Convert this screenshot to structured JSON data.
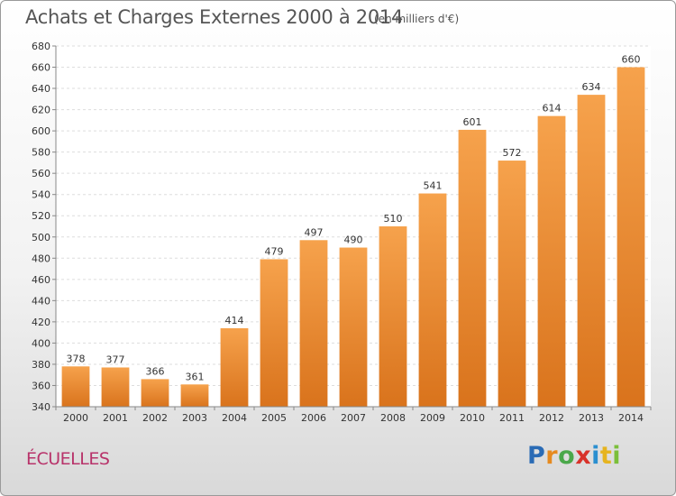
{
  "title": "Achats et Charges Externes 2000 à 2014",
  "subtitle": "(en milliers d'€)",
  "place": "ÉCUELLES",
  "logo": {
    "letters": [
      "P",
      "r",
      "o",
      "x",
      "i",
      "t",
      "i"
    ],
    "colors": [
      "#2a6bb5",
      "#e68a1f",
      "#4aa84a",
      "#d8322a",
      "#2a8fd0",
      "#e6b41f",
      "#7bbf3a"
    ]
  },
  "colors": {
    "bar_top": "#f6a24c",
    "bar_bottom": "#d9731c",
    "title": "#555555",
    "place": "#b8336a"
  },
  "chart_data": {
    "type": "bar",
    "categories": [
      "2000",
      "2001",
      "2002",
      "2003",
      "2004",
      "2005",
      "2006",
      "2007",
      "2008",
      "2009",
      "2010",
      "2011",
      "2012",
      "2013",
      "2014"
    ],
    "values": [
      378,
      377,
      366,
      361,
      414,
      479,
      497,
      490,
      510,
      541,
      601,
      572,
      614,
      634,
      660
    ],
    "title": "Achats et Charges Externes 2000 à 2014",
    "ylim": [
      340,
      680
    ],
    "yticks": [
      340,
      360,
      380,
      400,
      420,
      440,
      460,
      480,
      500,
      520,
      540,
      560,
      580,
      600,
      620,
      640,
      660,
      680
    ],
    "grid": true,
    "legend": "none"
  }
}
